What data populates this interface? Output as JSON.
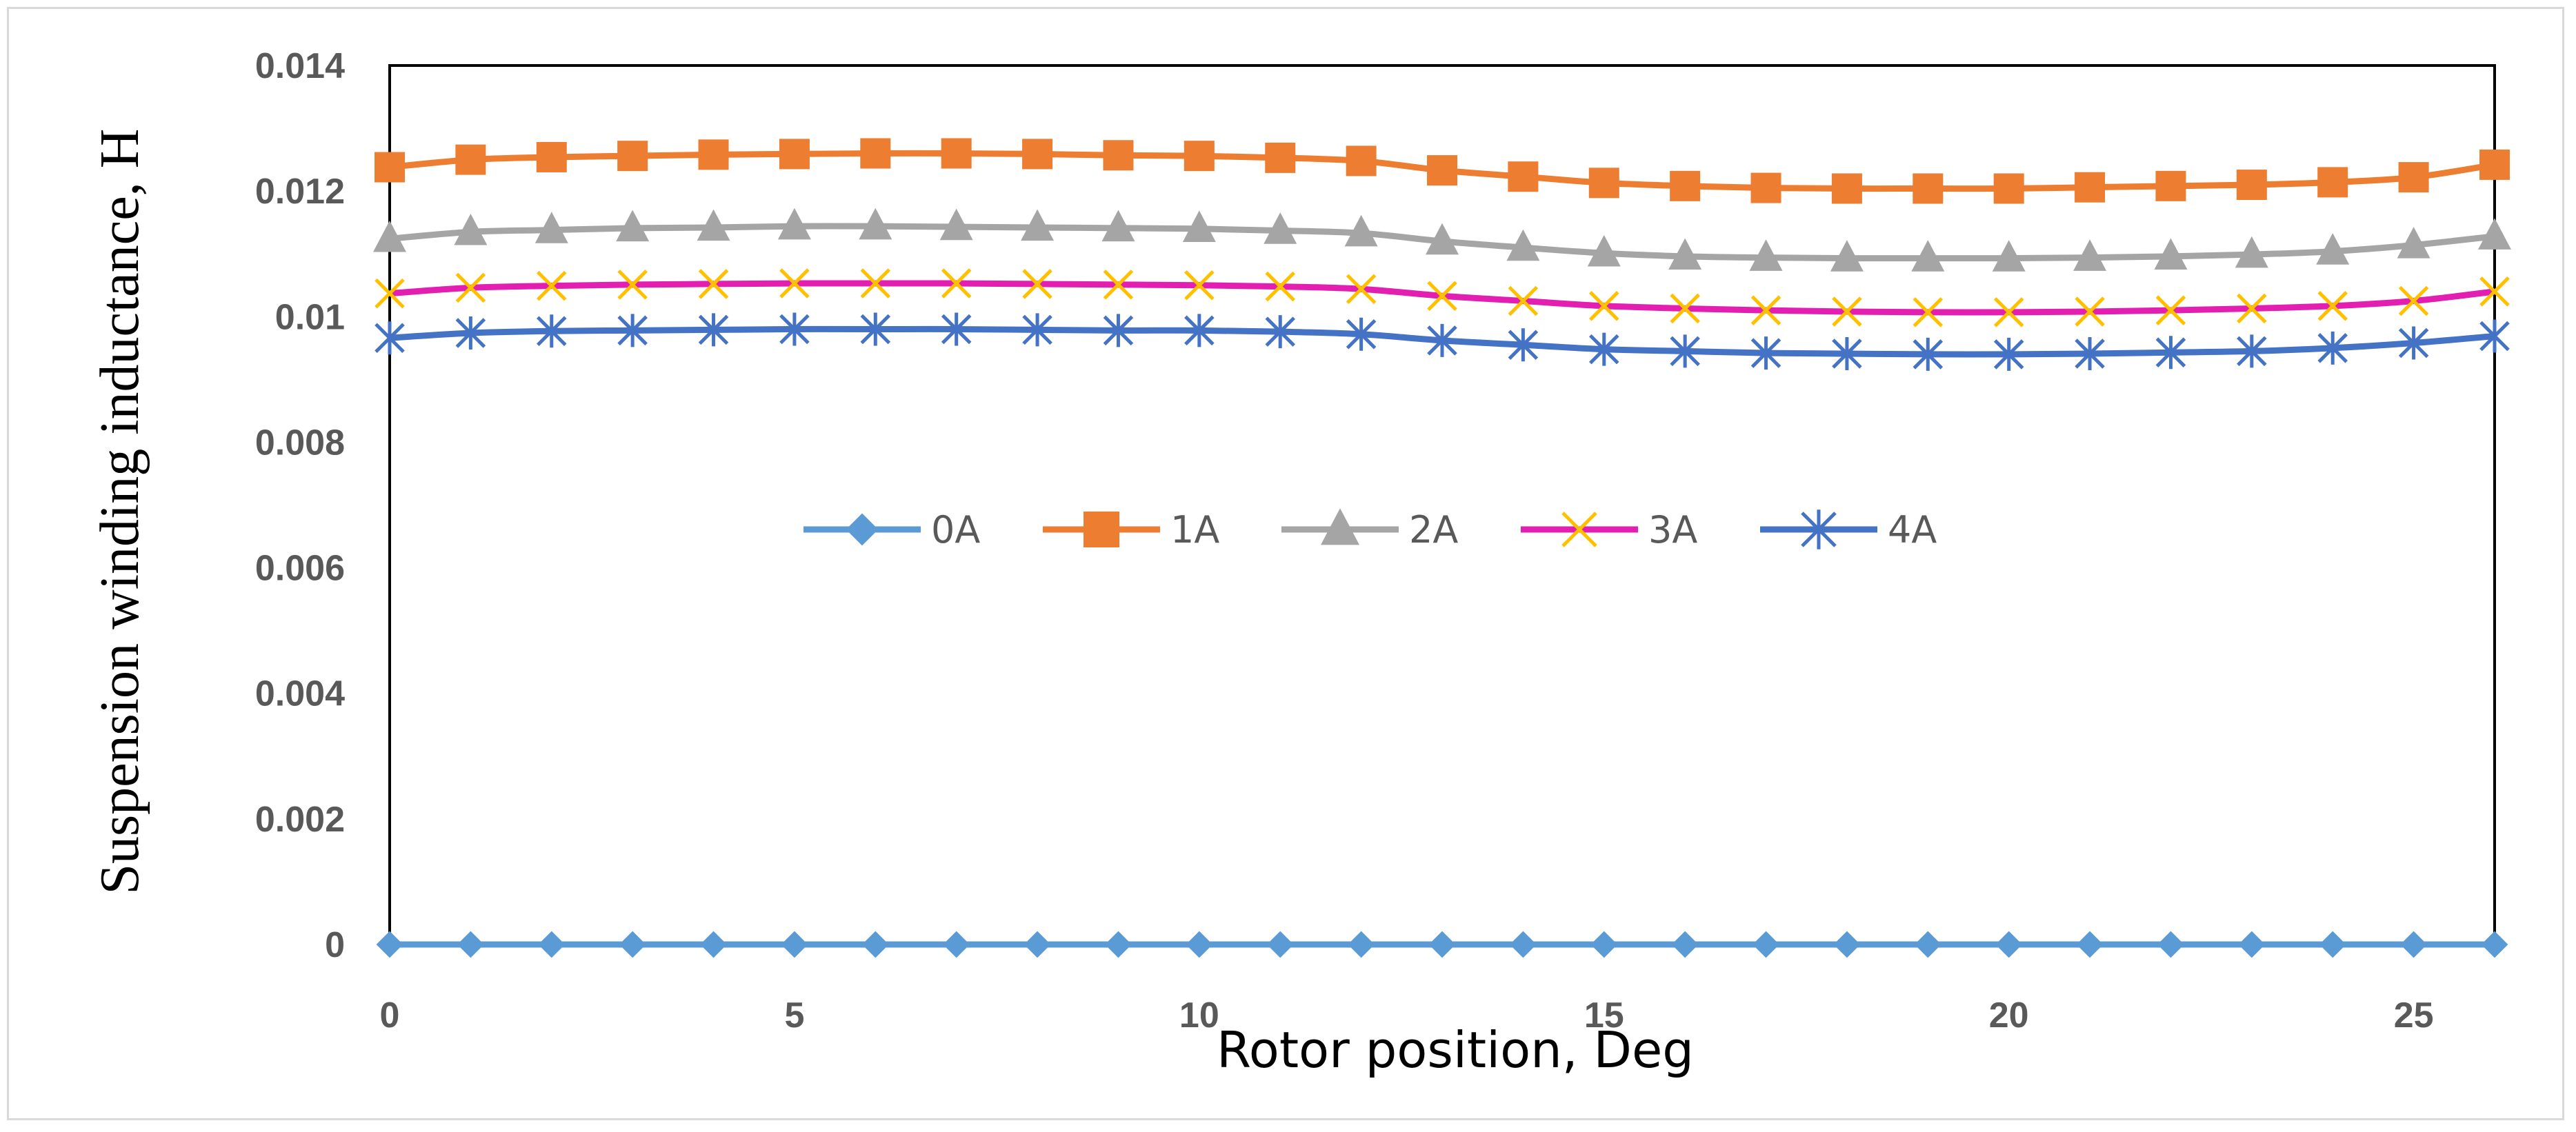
{
  "chart_data": {
    "type": "line",
    "title": "",
    "xlabel": "Rotor position, Deg",
    "ylabel": "Suspension winding inductance, H",
    "xlim": [
      0,
      26
    ],
    "ylim": [
      0,
      0.014
    ],
    "xticks": [
      0,
      5,
      10,
      15,
      20,
      25
    ],
    "yticks": [
      0,
      0.002,
      0.004,
      0.006,
      0.008,
      0.01,
      0.012,
      0.014
    ],
    "ytick_labels": [
      "0",
      "0.002",
      "0.004",
      "0.006",
      "0.008",
      "0.01",
      "0.012",
      "0.014"
    ],
    "legend_position": "center",
    "grid": false,
    "x": [
      0,
      1,
      2,
      3,
      4,
      5,
      6,
      7,
      8,
      9,
      10,
      11,
      12,
      13,
      14,
      15,
      16,
      17,
      18,
      19,
      20,
      21,
      22,
      23,
      24,
      25,
      26
    ],
    "series": [
      {
        "name": "0A",
        "color": "#5b9bd5",
        "marker": "diamond",
        "values": [
          0,
          0,
          0,
          0,
          0,
          0,
          0,
          0,
          0,
          0,
          0,
          0,
          0,
          0,
          0,
          0,
          0,
          0,
          0,
          0,
          0,
          0,
          0,
          0,
          0,
          0,
          0
        ]
      },
      {
        "name": "1A",
        "color": "#ed7d31",
        "marker": "square",
        "values": [
          0.01238,
          0.0125,
          0.01254,
          0.01256,
          0.01258,
          0.01259,
          0.0126,
          0.0126,
          0.01259,
          0.01257,
          0.01256,
          0.01253,
          0.01248,
          0.01233,
          0.01223,
          0.01213,
          0.01208,
          0.01205,
          0.01204,
          0.01204,
          0.01204,
          0.01206,
          0.01208,
          0.0121,
          0.01214,
          0.01222,
          0.01242
        ]
      },
      {
        "name": "2A",
        "color": "#a5a5a5",
        "marker": "triangle",
        "values": [
          0.01124,
          0.01135,
          0.01138,
          0.01141,
          0.01142,
          0.01144,
          0.01144,
          0.01143,
          0.01142,
          0.01141,
          0.0114,
          0.01137,
          0.01133,
          0.0112,
          0.0111,
          0.01101,
          0.01096,
          0.01094,
          0.01093,
          0.01093,
          0.01093,
          0.01094,
          0.01096,
          0.01099,
          0.01104,
          0.01114,
          0.01128
        ]
      },
      {
        "name": "3A",
        "color": "#e21fb0",
        "marker": "x",
        "values": [
          0.01037,
          0.01046,
          0.01049,
          0.01051,
          0.01052,
          0.01053,
          0.01053,
          0.01053,
          0.01052,
          0.01051,
          0.0105,
          0.01048,
          0.01044,
          0.01033,
          0.01025,
          0.01017,
          0.01013,
          0.0101,
          0.01008,
          0.01007,
          0.01007,
          0.01008,
          0.0101,
          0.01013,
          0.01017,
          0.01025,
          0.0104
        ]
      },
      {
        "name": "4A",
        "color": "#4472c4",
        "marker": "asterisk",
        "values": [
          0.00966,
          0.00974,
          0.00977,
          0.00978,
          0.00979,
          0.0098,
          0.0098,
          0.0098,
          0.00979,
          0.00978,
          0.00978,
          0.00976,
          0.00972,
          0.00962,
          0.00955,
          0.00948,
          0.00945,
          0.00942,
          0.00941,
          0.0094,
          0.0094,
          0.00941,
          0.00943,
          0.00945,
          0.0095,
          0.00958,
          0.00969
        ]
      }
    ]
  }
}
